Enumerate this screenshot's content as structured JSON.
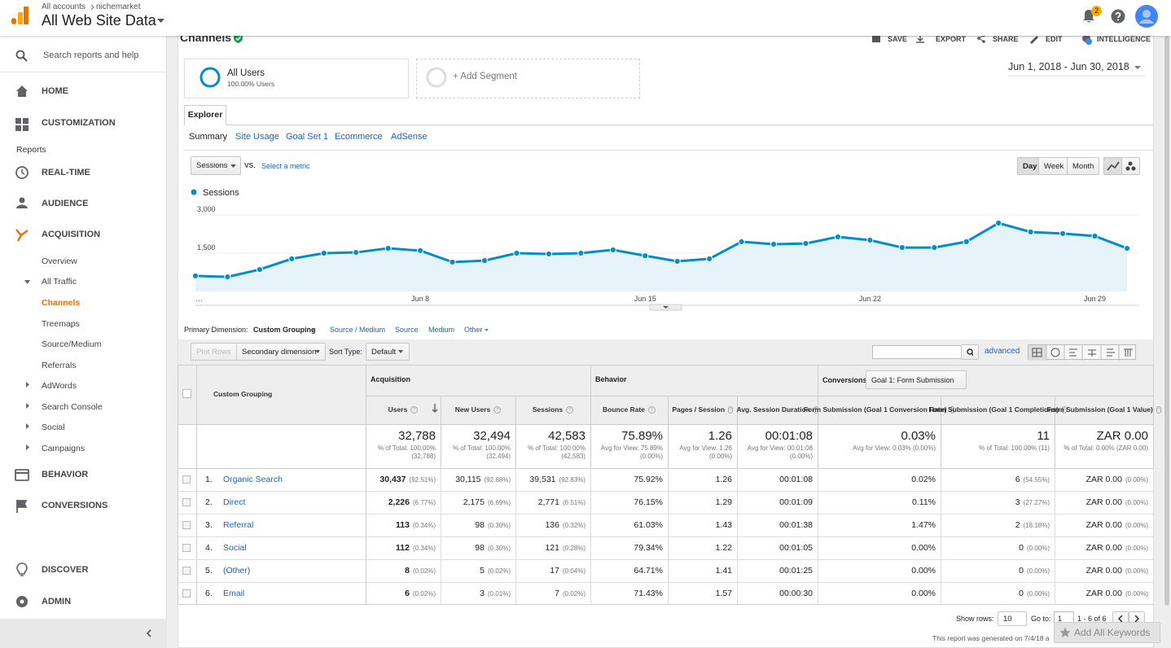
{
  "header": {
    "breadcrumb": [
      "All accounts",
      "nichemarket"
    ],
    "property": "All Web Site Data",
    "notifications": "2"
  },
  "sidebar": {
    "search": "Search reports and help",
    "top": [
      "HOME",
      "CUSTOMIZATION"
    ],
    "section": "Reports",
    "reports": [
      "REAL-TIME",
      "AUDIENCE",
      "ACQUISITION"
    ],
    "acquisition": [
      "Overview",
      "All Traffic"
    ],
    "all_traffic": [
      "Channels",
      "Treemaps",
      "Source/Medium",
      "Referrals"
    ],
    "acquisition_more": [
      "AdWords",
      "Search Console",
      "Social",
      "Campaigns"
    ],
    "more_reports": [
      "BEHAVIOR",
      "CONVERSIONS"
    ],
    "footer": [
      "DISCOVER",
      "ADMIN"
    ]
  },
  "report": {
    "title": "Channels",
    "actions": [
      "SAVE",
      "EXPORT",
      "SHARE",
      "EDIT",
      "INTELLIGENCE"
    ],
    "segment": {
      "name": "All Users",
      "share": "100.00% Users",
      "add": "+ Add Segment"
    },
    "date_range": "Jun 1, 2018 - Jun 30, 2018",
    "tab": "Explorer",
    "subtabs": [
      "Summary",
      "Site Usage",
      "Goal Set 1",
      "Ecommerce",
      "AdSense"
    ],
    "metric": "Sessions",
    "vs": "VS.",
    "select_metric": "Select a metric",
    "periods": [
      "Day",
      "Week",
      "Month"
    ]
  },
  "chart_data": {
    "type": "line",
    "categories": [
      "…",
      null,
      null,
      null,
      null,
      null,
      null,
      "Jun 8",
      null,
      null,
      null,
      null,
      null,
      null,
      "Jun 15",
      null,
      null,
      null,
      null,
      null,
      null,
      "Jun 22",
      null,
      null,
      null,
      null,
      null,
      null,
      "Jun 29",
      null
    ],
    "series": [
      {
        "name": "Sessions",
        "color": "#058dc7",
        "values": [
          610,
          570,
          860,
          1280,
          1500,
          1530,
          1690,
          1600,
          1150,
          1210,
          1500,
          1470,
          1500,
          1630,
          1400,
          1180,
          1280,
          1950,
          1850,
          1880,
          2140,
          2010,
          1720,
          1720,
          1950,
          2680,
          2330,
          2270,
          2170,
          1690
        ]
      }
    ],
    "ylim": [
      0,
      3000
    ],
    "yticks": [
      {
        "value": 1500,
        "label": "1,500"
      },
      {
        "value": 3000,
        "label": "3,000"
      }
    ],
    "grid": true
  },
  "dimensions": {
    "label": "Primary Dimension:",
    "current": "Custom Grouping",
    "others": [
      "Source / Medium",
      "Source",
      "Medium",
      "Other"
    ]
  },
  "toolbar": {
    "plot_rows": "Plot Rows",
    "secondary": "Secondary dimension",
    "sort_label": "Sort Type:",
    "sort": "Default",
    "advanced": "advanced"
  },
  "table": {
    "groups": [
      "Acquisition",
      "Behavior",
      "Conversions"
    ],
    "goal": "Goal 1: Form Submission",
    "columns": [
      "Custom Grouping",
      "Users",
      "New Users",
      "Sessions",
      "Bounce Rate",
      "Pages / Session",
      "Avg. Session Duration",
      "Form Submission (Goal 1 Conversion Rate)",
      "Form Submission (Goal 1 Completions)",
      "Form Submission (Goal 1 Value)"
    ],
    "totals": [
      [
        "32,788",
        "% of Total: 100.00% (32,788)"
      ],
      [
        "32,494",
        "% of Total: 100.00% (32,494)"
      ],
      [
        "42,583",
        "% of Total: 100.00% (42,583)"
      ],
      [
        "75.89%",
        "Avg for View: 75.89% (0.00%)"
      ],
      [
        "1.26",
        "Avg for View: 1.26 (0.00%)"
      ],
      [
        "00:01:08",
        "Avg for View: 00:01:08 (0.00%)"
      ],
      [
        "0.03%",
        "Avg for View: 0.03% (0.00%)"
      ],
      [
        "11",
        "% of Total: 100.00% (11)"
      ],
      [
        "ZAR 0.00",
        "% of Total: 0.00% (ZAR 0.00)"
      ]
    ],
    "rows": [
      {
        "rank": "1.",
        "name": "Organic Search",
        "cells": [
          [
            "30,437",
            "(92.51%)"
          ],
          [
            "30,115",
            "(92.68%)"
          ],
          [
            "39,531",
            "(92.83%)"
          ],
          [
            "75.92%"
          ],
          [
            "1.26"
          ],
          [
            "00:01:08"
          ],
          [
            "0.02%"
          ],
          [
            "6",
            "(54.55%)"
          ],
          [
            "ZAR 0.00",
            "(0.00%)"
          ]
        ]
      },
      {
        "rank": "2.",
        "name": "Direct",
        "cells": [
          [
            "2,226",
            "(6.77%)"
          ],
          [
            "2,175",
            "(6.69%)"
          ],
          [
            "2,771",
            "(6.51%)"
          ],
          [
            "76.15%"
          ],
          [
            "1.29"
          ],
          [
            "00:01:09"
          ],
          [
            "0.11%"
          ],
          [
            "3",
            "(27.27%)"
          ],
          [
            "ZAR 0.00",
            "(0.00%)"
          ]
        ]
      },
      {
        "rank": "3.",
        "name": "Referral",
        "cells": [
          [
            "113",
            "(0.34%)"
          ],
          [
            "98",
            "(0.30%)"
          ],
          [
            "136",
            "(0.32%)"
          ],
          [
            "61.03%"
          ],
          [
            "1.43"
          ],
          [
            "00:01:38"
          ],
          [
            "1.47%"
          ],
          [
            "2",
            "(18.18%)"
          ],
          [
            "ZAR 0.00",
            "(0.00%)"
          ]
        ]
      },
      {
        "rank": "4.",
        "name": "Social",
        "cells": [
          [
            "112",
            "(0.34%)"
          ],
          [
            "98",
            "(0.30%)"
          ],
          [
            "121",
            "(0.28%)"
          ],
          [
            "79.34%"
          ],
          [
            "1.22"
          ],
          [
            "00:01:05"
          ],
          [
            "0.00%"
          ],
          [
            "0",
            "(0.00%)"
          ],
          [
            "ZAR 0.00",
            "(0.00%)"
          ]
        ]
      },
      {
        "rank": "5.",
        "name": "(Other)",
        "cells": [
          [
            "8",
            "(0.02%)"
          ],
          [
            "5",
            "(0.02%)"
          ],
          [
            "17",
            "(0.04%)"
          ],
          [
            "64.71%"
          ],
          [
            "1.41"
          ],
          [
            "00:01:25"
          ],
          [
            "0.00%"
          ],
          [
            "0",
            "(0.00%)"
          ],
          [
            "ZAR 0.00",
            "(0.00%)"
          ]
        ]
      },
      {
        "rank": "6.",
        "name": "Email",
        "cells": [
          [
            "6",
            "(0.02%)"
          ],
          [
            "3",
            "(0.01%)"
          ],
          [
            "7",
            "(0.02%)"
          ],
          [
            "71.43%"
          ],
          [
            "1.57"
          ],
          [
            "00:00:30"
          ],
          [
            "0.00%"
          ],
          [
            "0",
            "(0.00%)"
          ],
          [
            "ZAR 0.00",
            "(0.00%)"
          ]
        ]
      }
    ]
  },
  "footer": {
    "show_rows": "Show rows:",
    "rows_value": "10",
    "goto": "Go to:",
    "goto_value": "1",
    "range": "1 - 6 of 6",
    "generated": "This report was generated on 7/4/18 a",
    "keywords": "Add All Keywords"
  }
}
